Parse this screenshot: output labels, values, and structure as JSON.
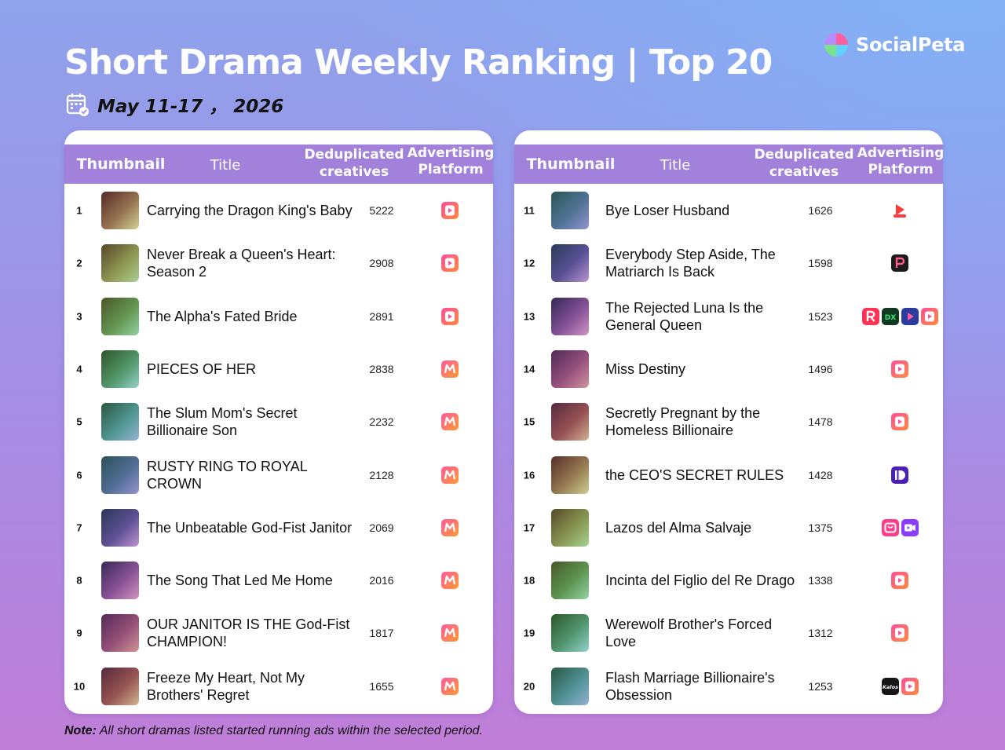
{
  "header": {
    "title": "Short Drama Weekly Ranking | Top 20",
    "date": "May 11-17 ， 2026",
    "brand": "SocialPeta"
  },
  "columns": {
    "thumbnail": "Thumbnail",
    "title": "Title",
    "dedup_line1": "Deduplicated",
    "dedup_line2": "creatives",
    "platform_line1": "Advertising",
    "platform_line2": "Platform"
  },
  "left_rows": [
    {
      "rank": "1",
      "title": "Carrying the Dragon King's Baby",
      "creatives": "5222",
      "platforms": [
        "pink-play"
      ]
    },
    {
      "rank": "2",
      "title": "Never Break a Queen's Heart: Season 2",
      "creatives": "2908",
      "platforms": [
        "pink-play"
      ]
    },
    {
      "rank": "3",
      "title": "The Alpha's Fated Bride",
      "creatives": "2891",
      "platforms": [
        "pink-play"
      ]
    },
    {
      "rank": "4",
      "title": "PIECES OF HER",
      "creatives": "2838",
      "platforms": [
        "orange-m"
      ]
    },
    {
      "rank": "5",
      "title": "The Slum Mom's Secret Billionaire Son",
      "creatives": "2232",
      "platforms": [
        "orange-m"
      ]
    },
    {
      "rank": "6",
      "title": "RUSTY RING TO ROYAL CROWN",
      "creatives": "2128",
      "platforms": [
        "orange-m"
      ]
    },
    {
      "rank": "7",
      "title": "The Unbeatable God-Fist Janitor",
      "creatives": "2069",
      "platforms": [
        "orange-m"
      ]
    },
    {
      "rank": "8",
      "title": "The Song That Led Me Home",
      "creatives": "2016",
      "platforms": [
        "orange-m"
      ]
    },
    {
      "rank": "9",
      "title": "OUR JANITOR IS THE God-Fist CHAMPION!",
      "creatives": "1817",
      "platforms": [
        "orange-m"
      ]
    },
    {
      "rank": "10",
      "title": "Freeze My Heart, Not My Brothers' Regret",
      "creatives": "1655",
      "platforms": [
        "orange-m"
      ]
    }
  ],
  "right_rows": [
    {
      "rank": "11",
      "title": "Bye Loser Husband",
      "creatives": "1626",
      "platforms": [
        "red-drama"
      ]
    },
    {
      "rank": "12",
      "title": "Everybody Step Aside, The Matriarch Is Back",
      "creatives": "1598",
      "platforms": [
        "black-p"
      ]
    },
    {
      "rank": "13",
      "title": "The Rejected Luna Is the General Queen",
      "creatives": "1523",
      "platforms": [
        "red-r",
        "green-dx",
        "blue-play",
        "pink-play"
      ]
    },
    {
      "rank": "14",
      "title": "Miss Destiny",
      "creatives": "1496",
      "platforms": [
        "pink-play"
      ]
    },
    {
      "rank": "15",
      "title": "Secretly Pregnant by the Homeless Billionaire",
      "creatives": "1478",
      "platforms": [
        "pink-play"
      ]
    },
    {
      "rank": "16",
      "title": "the CEO'S SECRET RULES",
      "creatives": "1428",
      "platforms": [
        "purple-d"
      ]
    },
    {
      "rank": "17",
      "title": "Lazos del Alma Salvaje",
      "creatives": "1375",
      "platforms": [
        "pink-tv",
        "purple-cam"
      ]
    },
    {
      "rank": "18",
      "title": "Incinta del Figlio del Re Drago",
      "creatives": "1338",
      "platforms": [
        "pink-play"
      ]
    },
    {
      "rank": "19",
      "title": "Werewolf Brother's Forced Love",
      "creatives": "1312",
      "platforms": [
        "pink-play"
      ]
    },
    {
      "rank": "20",
      "title": "Flash Marriage Billionaire's Obsession",
      "creatives": "1253",
      "platforms": [
        "black-kalos",
        "pink-play"
      ]
    }
  ],
  "note": {
    "label": "Note:",
    "text": " All short dramas listed started running ads within the selected period."
  },
  "colors": {
    "header_bar": "#a181d9",
    "pink_play": "#ff3d7f",
    "orange_m": "#ff7a3d"
  }
}
